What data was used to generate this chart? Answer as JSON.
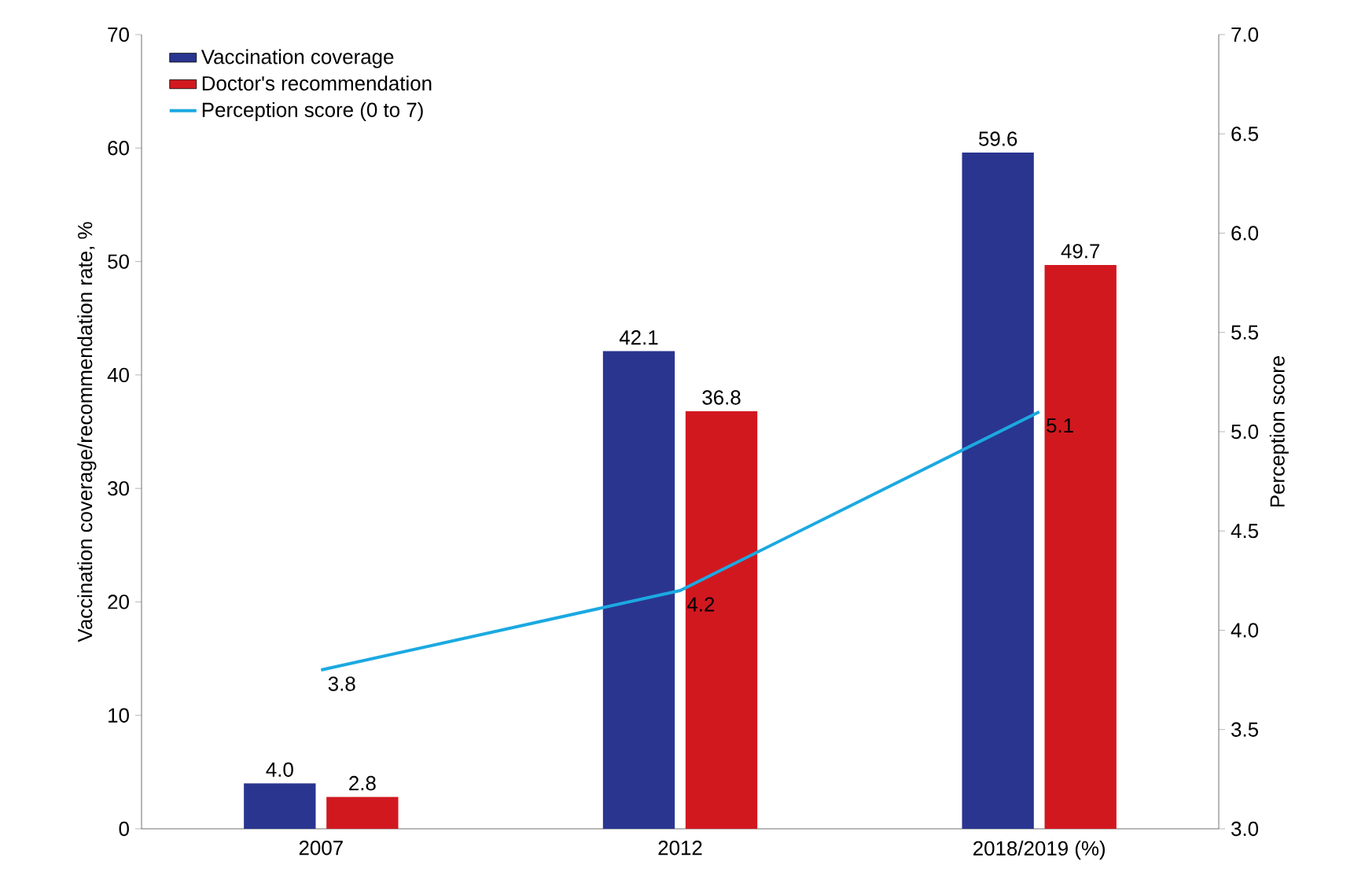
{
  "chart_data": {
    "type": "bar",
    "categories": [
      "2007",
      "2012",
      "2018/2019 (%)"
    ],
    "ylabel": "Vaccination coverage/recommendation rate, %",
    "y2label": "Perception score",
    "ylim": [
      0,
      70
    ],
    "yticks": [
      0,
      10,
      20,
      30,
      40,
      50,
      60,
      70
    ],
    "y2lim": [
      3,
      7
    ],
    "y2ticks": [
      {
        "value": 3,
        "label": "3.0"
      },
      {
        "value": 3.5,
        "label": "3.5"
      },
      {
        "value": 4,
        "label": "4.0"
      },
      {
        "value": 4.5,
        "label": "4.5"
      },
      {
        "value": 5,
        "label": "5.0"
      },
      {
        "value": 5.5,
        "label": "5.5"
      },
      {
        "value": 6,
        "label": "6.0"
      },
      {
        "value": 6.5,
        "label": "6.5"
      },
      {
        "value": 7,
        "label": "7.0"
      }
    ],
    "series": [
      {
        "name": "Vaccination coverage",
        "color": "#2a3590",
        "values": [
          4.0,
          42.1,
          59.6
        ],
        "value_labels": [
          "4.0",
          "42.1",
          "59.6"
        ]
      },
      {
        "name": "Doctor's recommendation",
        "color": "#d1181f",
        "values": [
          2.8,
          36.8,
          49.7
        ],
        "value_labels": [
          "2.8",
          "36.8",
          "49.7"
        ]
      },
      {
        "name": "Perception score (0 to 7)",
        "type": "line",
        "axis": "y2",
        "color": "#1ba9e1",
        "values": [
          3.8,
          4.2,
          5.1
        ],
        "value_labels": [
          "3.8",
          "4.2",
          "5.1"
        ]
      }
    ],
    "legend": "top left"
  }
}
